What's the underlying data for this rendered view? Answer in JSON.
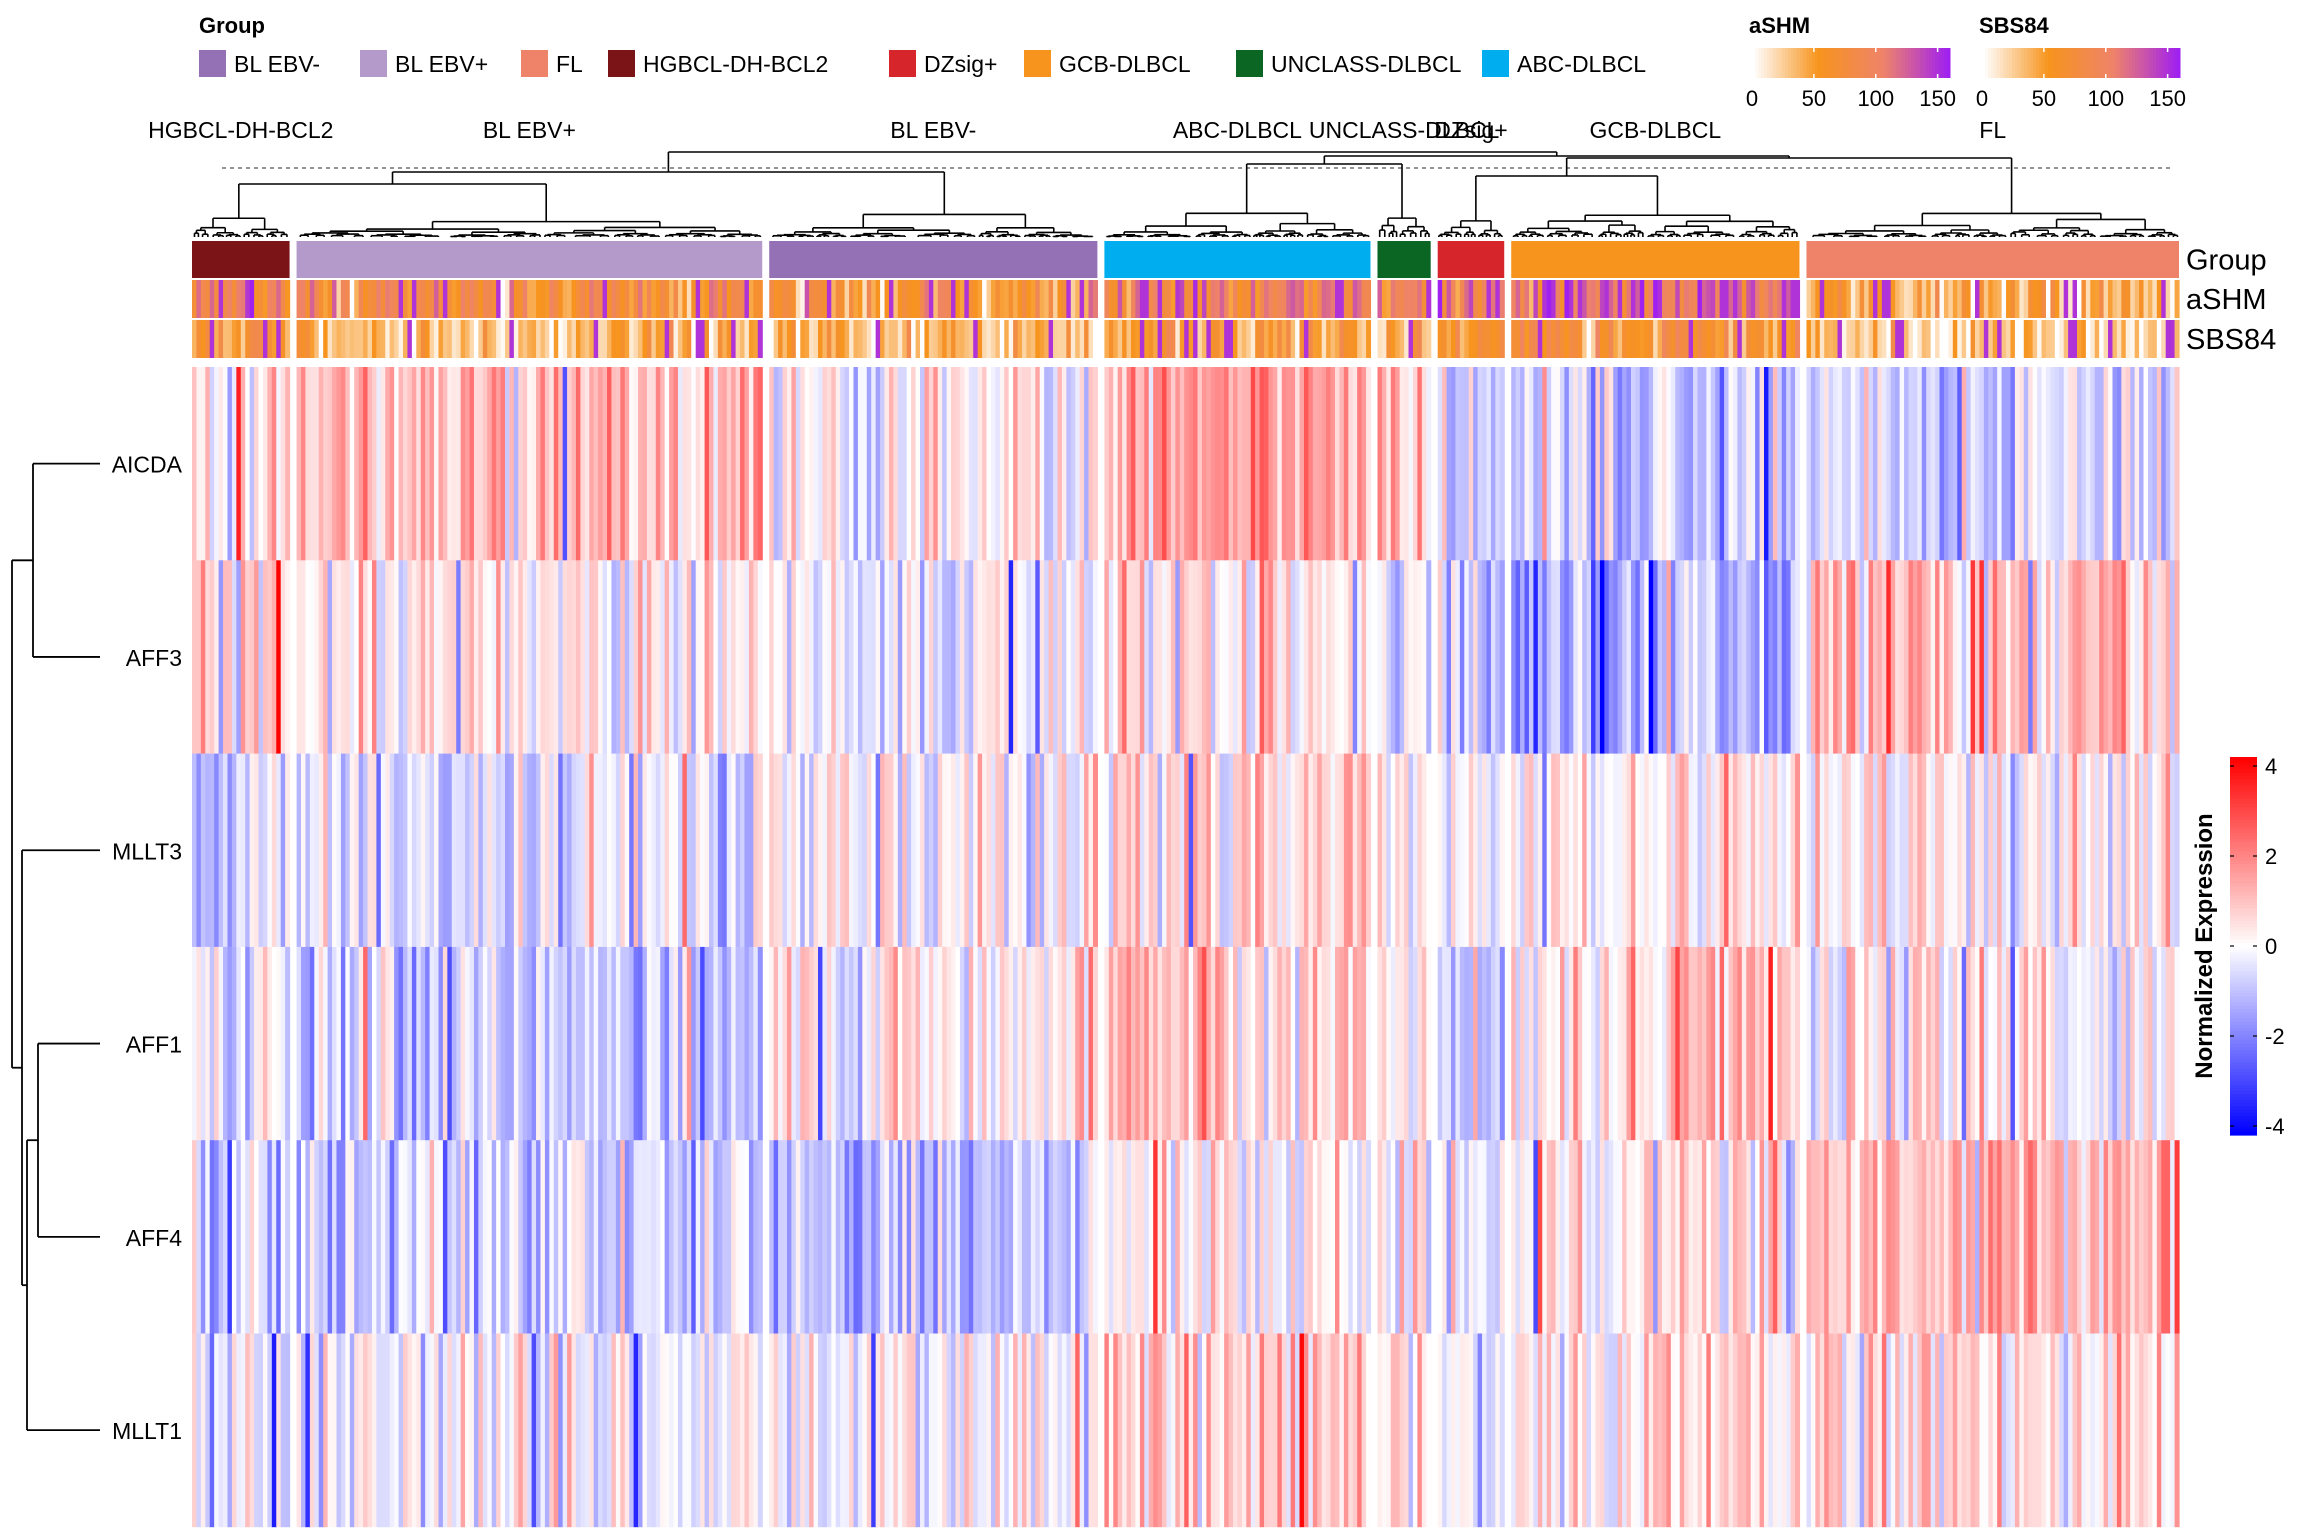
{
  "chart_data": {
    "type": "heatmap",
    "title": "",
    "rows": [
      "AICDA",
      "AFF3",
      "MLLT3",
      "AFF1",
      "AFF4",
      "MLLT1"
    ],
    "groups": [
      {
        "name": "HGBCL-DH-BCL2",
        "n": 22,
        "color": "#7B1416",
        "means": [
          0.2,
          0.7,
          -0.8,
          -0.3,
          -0.9,
          -0.6
        ],
        "ashm": 95,
        "sbs84": 55
      },
      {
        "name": "BL EBV+",
        "n": 105,
        "color": "#B49ACB",
        "means": [
          1.2,
          0.3,
          -0.5,
          -0.8,
          -0.7,
          -0.1
        ],
        "ashm": 70,
        "sbs84": 30
      },
      {
        "name": "BL EBV-",
        "n": 74,
        "color": "#9471B4",
        "means": [
          0.1,
          -0.1,
          0.1,
          0.4,
          -1.1,
          -0.1
        ],
        "ashm": 65,
        "sbs84": 35
      },
      {
        "name": "ABC-DLBCL",
        "n": 60,
        "color": "#00AEEF",
        "means": [
          1.5,
          0.5,
          0.5,
          1.0,
          0.2,
          0.9
        ],
        "ashm": 100,
        "sbs84": 50
      },
      {
        "name": "UNCLASS-DLBCL",
        "n": 12,
        "color": "#0B6623",
        "means": [
          0.8,
          -0.2,
          0.3,
          0.5,
          0.1,
          0.4
        ],
        "ashm": 95,
        "sbs84": 45
      },
      {
        "name": "DZsig+",
        "n": 15,
        "color": "#D7262B",
        "means": [
          -0.8,
          -0.5,
          0.1,
          -0.6,
          -0.2,
          -0.3
        ],
        "ashm": 100,
        "sbs84": 60
      },
      {
        "name": "GCB-DLBCL",
        "n": 65,
        "color": "#F7941D",
        "means": [
          -0.9,
          -1.2,
          0.3,
          0.6,
          0.3,
          0.4
        ],
        "ashm": 110,
        "sbs84": 65
      },
      {
        "name": "FL",
        "n": 84,
        "color": "#EE836A",
        "means": [
          -0.6,
          1.0,
          0.2,
          0.2,
          1.2,
          0.6
        ],
        "ashm": 40,
        "sbs84": 25
      }
    ],
    "group_legend": {
      "title": "Group",
      "items": [
        {
          "label": "BL EBV-",
          "color": "#9471B4"
        },
        {
          "label": "BL EBV+",
          "color": "#B49ACB"
        },
        {
          "label": "FL",
          "color": "#EE836A"
        },
        {
          "label": "HGBCL-DH-BCL2",
          "color": "#7B1416"
        },
        {
          "label": "DZsig+",
          "color": "#D7262B"
        },
        {
          "label": "GCB-DLBCL",
          "color": "#F7941D"
        },
        {
          "label": "UNCLASS-DLBCL",
          "color": "#0B6623"
        },
        {
          "label": "ABC-DLBCL",
          "color": "#00AEEF"
        }
      ]
    },
    "annotation_names": [
      "Group",
      "aSHM",
      "SBS84"
    ],
    "ashm_scale": {
      "title": "aSHM",
      "range": [
        0,
        160
      ],
      "ticks": [
        0,
        50,
        100,
        150
      ],
      "colors": [
        "#FFFFFF",
        "#F7941D",
        "#EE836A",
        "#A020F0"
      ]
    },
    "sbs84_scale": {
      "title": "SBS84",
      "range": [
        0,
        160
      ],
      "ticks": [
        0,
        50,
        100,
        150
      ],
      "colors": [
        "#FFFFFF",
        "#F7941D",
        "#EE836A",
        "#A020F0"
      ]
    },
    "value_scale": {
      "title": "Normalized Expression",
      "range": [
        -4.2,
        4.2
      ],
      "ticks": [
        4,
        2,
        0,
        -2,
        -4
      ],
      "colors": [
        "#0000FF",
        "#FFFFFF",
        "#FF0000"
      ]
    }
  }
}
